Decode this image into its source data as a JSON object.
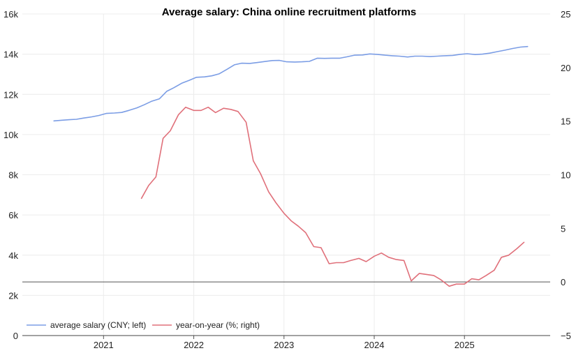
{
  "chart_data": {
    "type": "line",
    "title": "Average salary: China online recruitment platforms",
    "xlabel": "",
    "ylabel_left": "",
    "ylabel_right": "",
    "x_ticks": [
      2021,
      2022,
      2023,
      2024,
      2025
    ],
    "x_range": [
      2020.1,
      2025.95
    ],
    "y_left": {
      "range": [
        0,
        16000
      ],
      "ticks": [
        0,
        2000,
        4000,
        6000,
        8000,
        10000,
        12000,
        14000,
        16000
      ],
      "tick_labels": [
        "0",
        "2k",
        "4k",
        "6k",
        "8k",
        "10k",
        "12k",
        "14k",
        "16k"
      ]
    },
    "y_right": {
      "range": [
        -5,
        25
      ],
      "ticks": [
        -5,
        0,
        5,
        10,
        15,
        20,
        25
      ],
      "tick_labels": [
        "−5",
        "0",
        "5",
        "10",
        "15",
        "20",
        "25"
      ]
    },
    "grid": true,
    "zero_line_right": true,
    "legend_position": "bottom-left",
    "series": [
      {
        "name": "average salary (CNY; left)",
        "axis": "left",
        "color": "#7b9de5",
        "x": [
          2020.45,
          2020.53,
          2020.62,
          2020.7,
          2020.78,
          2020.87,
          2020.95,
          2021.03,
          2021.12,
          2021.2,
          2021.28,
          2021.37,
          2021.45,
          2021.53,
          2021.62,
          2021.7,
          2021.78,
          2021.87,
          2021.95,
          2022.03,
          2022.12,
          2022.2,
          2022.28,
          2022.37,
          2022.45,
          2022.53,
          2022.62,
          2022.7,
          2022.78,
          2022.87,
          2022.95,
          2023.03,
          2023.12,
          2023.2,
          2023.28,
          2023.37,
          2023.45,
          2023.53,
          2023.62,
          2023.7,
          2023.78,
          2023.87,
          2023.95,
          2024.03,
          2024.12,
          2024.2,
          2024.28,
          2024.37,
          2024.45,
          2024.53,
          2024.62,
          2024.7,
          2024.78,
          2024.87,
          2024.95,
          2025.03,
          2025.12,
          2025.2,
          2025.28,
          2025.37,
          2025.45,
          2025.53,
          2025.62,
          2025.7
        ],
        "values": [
          10680,
          10710,
          10740,
          10760,
          10820,
          10880,
          10950,
          11050,
          11070,
          11100,
          11200,
          11330,
          11480,
          11650,
          11780,
          12150,
          12330,
          12560,
          12700,
          12850,
          12870,
          12920,
          13020,
          13250,
          13470,
          13550,
          13540,
          13580,
          13630,
          13680,
          13690,
          13620,
          13610,
          13620,
          13640,
          13800,
          13790,
          13800,
          13800,
          13870,
          13950,
          13960,
          14010,
          13990,
          13950,
          13920,
          13900,
          13860,
          13900,
          13900,
          13880,
          13900,
          13920,
          13940,
          13990,
          14020,
          13980,
          14000,
          14050,
          14130,
          14200,
          14280,
          14350,
          14380
        ]
      },
      {
        "name": "year-on-year (%; right)",
        "axis": "right",
        "color": "#e0707a",
        "x": [
          2021.42,
          2021.5,
          2021.58,
          2021.66,
          2021.74,
          2021.83,
          2021.91,
          2022.0,
          2022.08,
          2022.16,
          2022.24,
          2022.33,
          2022.41,
          2022.49,
          2022.58,
          2022.66,
          2022.74,
          2022.83,
          2022.91,
          2023.0,
          2023.08,
          2023.16,
          2023.24,
          2023.33,
          2023.41,
          2023.5,
          2023.58,
          2023.66,
          2023.74,
          2023.83,
          2023.91,
          2024.0,
          2024.08,
          2024.16,
          2024.24,
          2024.33,
          2024.41,
          2024.5,
          2024.58,
          2024.66,
          2024.74,
          2024.83,
          2024.91,
          2025.0,
          2025.08,
          2025.16,
          2025.24,
          2025.33,
          2025.41,
          2025.49,
          2025.58,
          2025.66
        ],
        "values": [
          7.8,
          9.0,
          9.8,
          13.4,
          14.1,
          15.6,
          16.3,
          16.0,
          16.0,
          16.3,
          15.8,
          16.2,
          16.1,
          15.9,
          14.9,
          11.3,
          10.1,
          8.4,
          7.4,
          6.4,
          5.7,
          5.2,
          4.6,
          3.3,
          3.2,
          1.7,
          1.8,
          1.8,
          2.0,
          2.2,
          1.9,
          2.4,
          2.7,
          2.3,
          2.1,
          2.0,
          0.1,
          0.8,
          0.7,
          0.6,
          0.2,
          -0.4,
          -0.2,
          -0.2,
          0.3,
          0.2,
          0.6,
          1.1,
          2.3,
          2.5,
          3.1,
          3.7
        ]
      }
    ]
  }
}
